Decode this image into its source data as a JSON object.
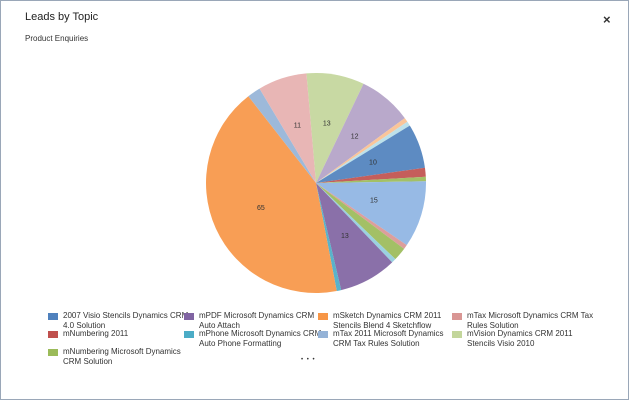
{
  "window": {
    "close_label": "×",
    "more_label": "• • •"
  },
  "chart_data": {
    "type": "pie",
    "title": "Leads by Topic",
    "subtitle": "Product Enquiries",
    "start_angle": -5,
    "values": [
      13,
      12,
      1,
      1,
      10,
      2,
      1,
      15,
      1,
      3,
      1,
      13,
      1,
      65,
      3,
      11
    ],
    "colors": [
      "#c3d69b",
      "#b3a2c7",
      "#fac090",
      "#b7dee8",
      "#4f81bd",
      "#c0504d",
      "#9bbb59",
      "#8eb4e3",
      "#d99694",
      "#9bbb59",
      "#93cddd",
      "#8064a2",
      "#4bacc6",
      "#f79646",
      "#95b3d7",
      "#e6b0af"
    ],
    "legend": [
      {
        "name": "2007 Visio Stencils Dynamics CRM 4.0 Solution",
        "color": "#4f81bd"
      },
      {
        "name": "mPDF Microsoft Dynamics CRM Auto Attach",
        "color": "#8064a2"
      },
      {
        "name": "mSketch Dynamics CRM 2011 Stencils Blend 4 Sketchflow",
        "color": "#f79646"
      },
      {
        "name": "mTax Microsoft Dynamics CRM Tax Rules Solution",
        "color": "#d99694"
      },
      {
        "name": "mNumbering 2011",
        "color": "#c0504d"
      },
      {
        "name": "mPhone Microsoft Dynamics CRM Auto Phone Formatting",
        "color": "#4bacc6"
      },
      {
        "name": "mTax 2011 Microsoft Dynamics CRM Tax Rules Solution",
        "color": "#95b3d7"
      },
      {
        "name": "mVision Dynamics CRM 2011 Stencils Visio 2010",
        "color": "#c3d69b"
      },
      {
        "name": "mNumbering Microsoft Dynamics CRM Solution",
        "color": "#9bbb59"
      }
    ]
  }
}
